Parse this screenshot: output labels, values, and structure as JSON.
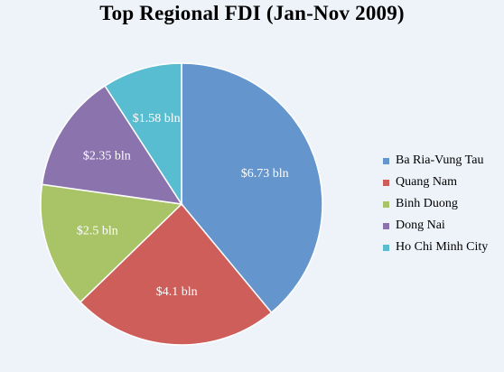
{
  "chart_data": {
    "type": "pie",
    "title": "Top Regional FDI (Jan-Nov 2009)",
    "categories": [
      "Ba Ria-Vung Tau",
      "Quang Nam",
      "Binh Duong",
      "Dong Nai",
      "Ho Chi Minh City"
    ],
    "values": [
      6.73,
      4.1,
      2.5,
      2.35,
      1.58
    ],
    "data_labels": [
      "$6.73 bln",
      "$4.1 bln",
      "$2.5 bln",
      "$2.35 bln",
      "$1.58 bln"
    ],
    "colors": [
      "#6495cc",
      "#cd5e5a",
      "#a9c466",
      "#8b74ad",
      "#58bdd0"
    ],
    "legend_position": "right",
    "grid": false
  }
}
